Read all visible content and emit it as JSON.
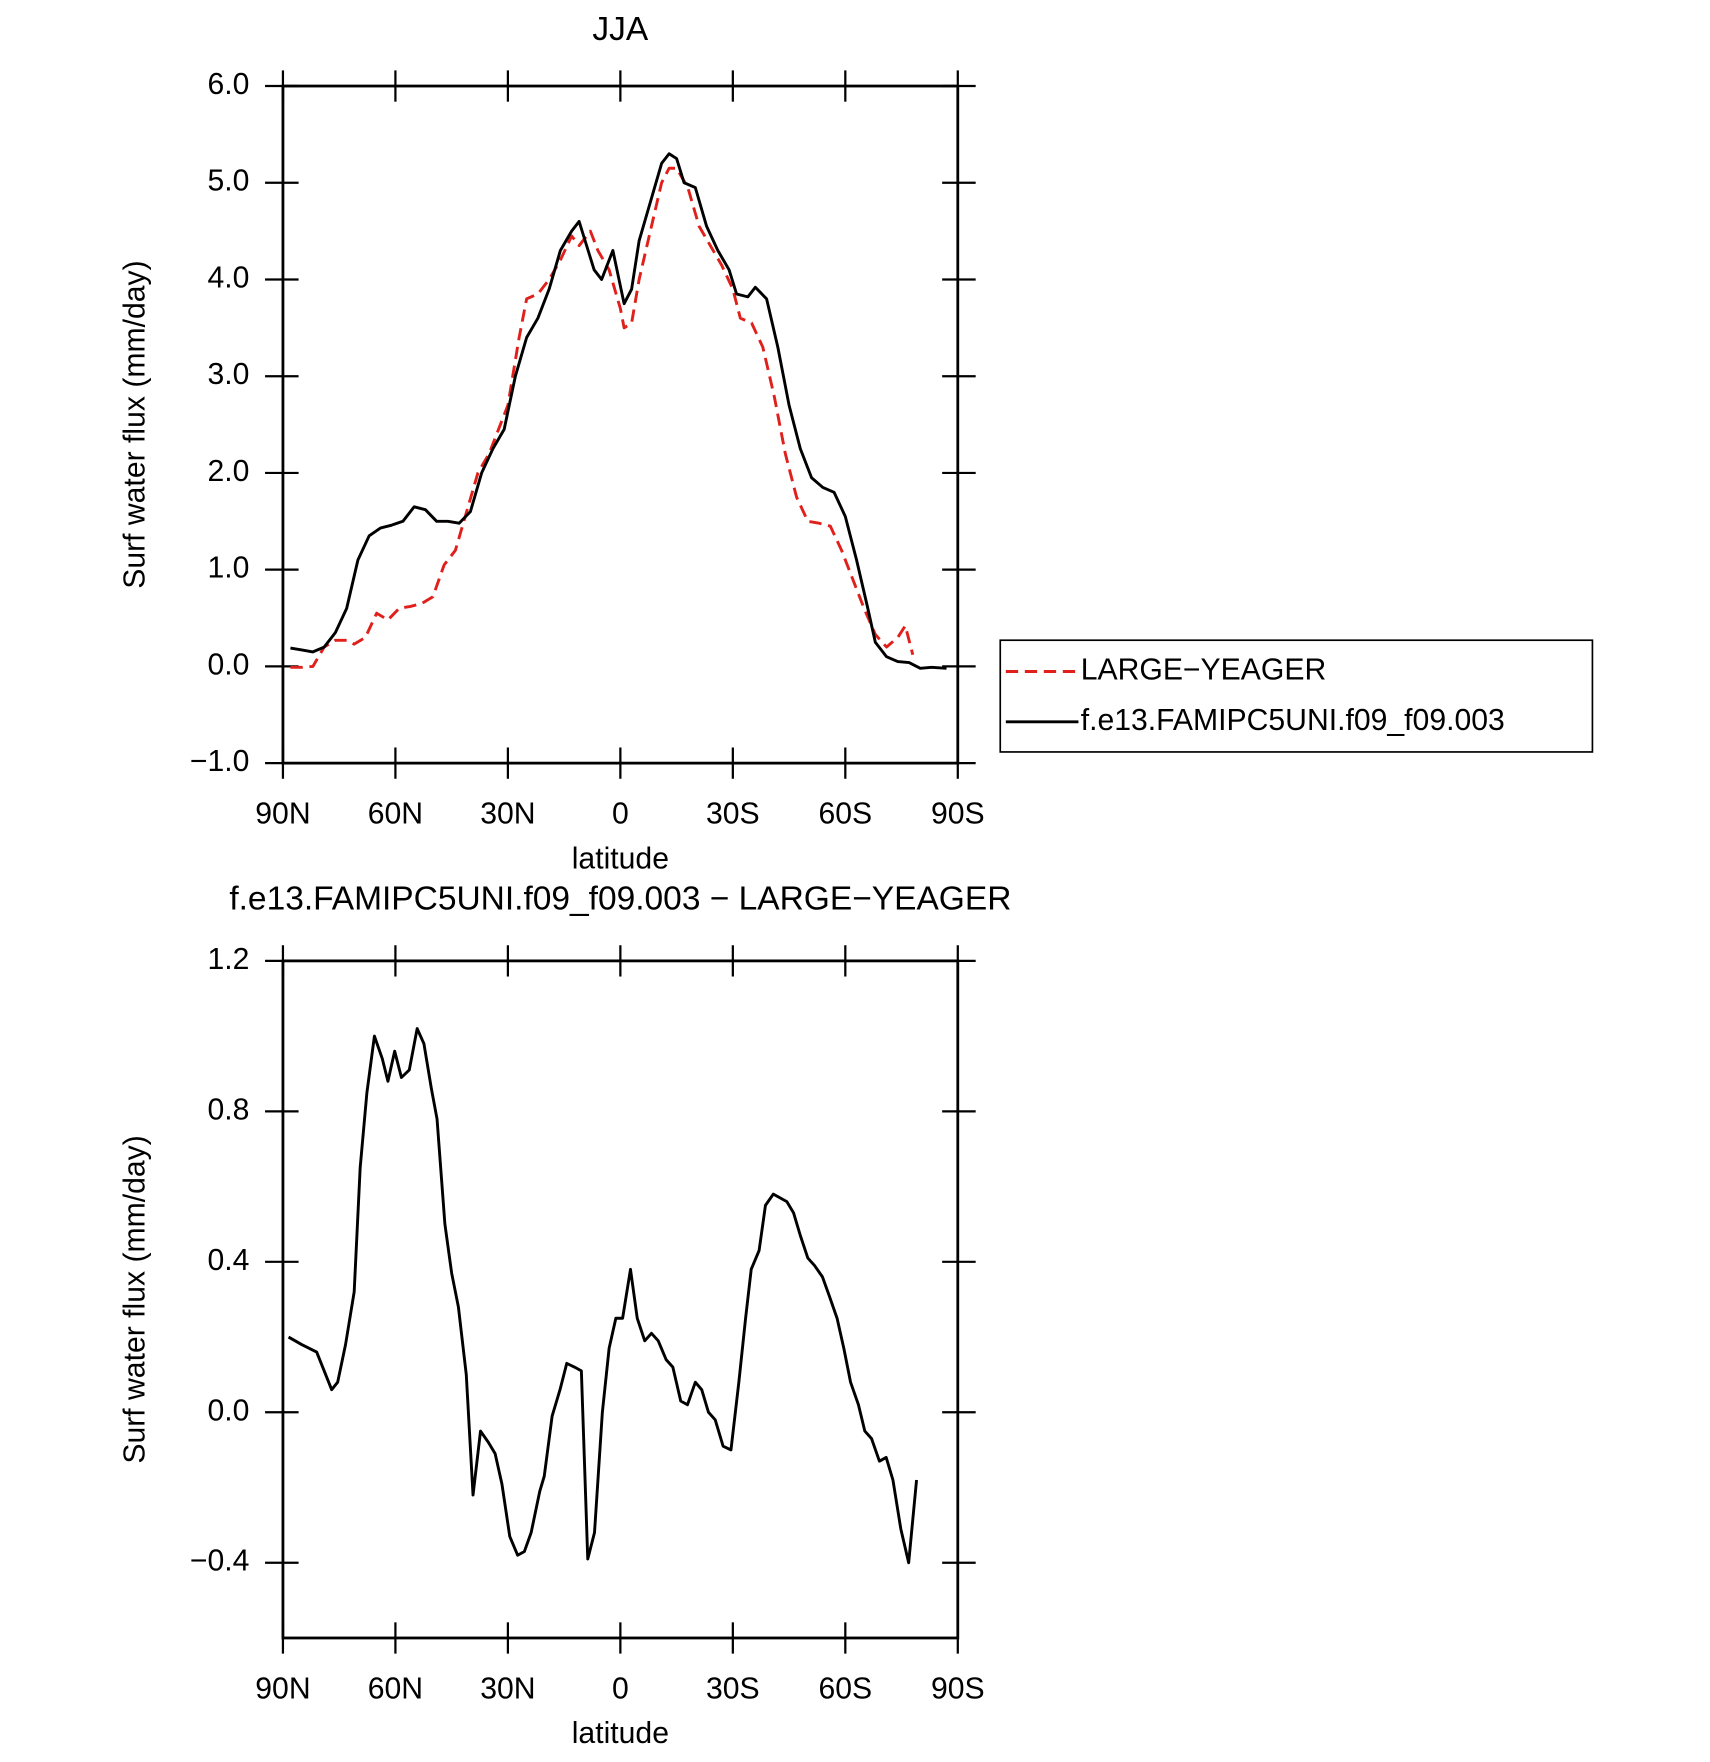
{
  "chart_data": [
    {
      "type": "line",
      "title": "JJA",
      "xlabel": "latitude",
      "ylabel": "Surf water flux (mm/day)",
      "xlim": [
        90,
        -90
      ],
      "xticks": [
        {
          "value": 90,
          "label": "90N"
        },
        {
          "value": 60,
          "label": "60N"
        },
        {
          "value": 30,
          "label": "30N"
        },
        0,
        {
          "value": -30,
          "label": "30S"
        },
        {
          "value": -60,
          "label": "60S"
        },
        {
          "value": -90,
          "label": "90S"
        }
      ],
      "ylim": [
        -1,
        6
      ],
      "yticks": [
        {
          "value": 6,
          "label": "6.0"
        },
        {
          "value": 5,
          "label": "5.0"
        },
        {
          "value": 4,
          "label": "4.0"
        },
        {
          "value": 3,
          "label": "3.0"
        },
        {
          "value": 2,
          "label": "2.0"
        },
        {
          "value": 1,
          "label": "1.0"
        },
        {
          "value": 0,
          "label": "0.0"
        },
        {
          "value": -1,
          "label": "−1.0"
        }
      ],
      "legend_position": "right",
      "series": [
        {
          "name": "LARGE−YEAGER",
          "color": "#e0201b",
          "line_style": "dashed",
          "x": [
            88,
            85,
            82,
            79,
            76,
            73,
            71,
            68,
            65,
            62,
            59,
            56,
            53,
            50,
            47,
            44,
            41,
            38,
            35,
            32,
            30,
            27,
            25,
            22,
            19,
            16,
            13,
            11,
            8,
            6,
            3,
            0,
            -1,
            -3,
            -5,
            -8,
            -11,
            -13,
            -15,
            -18,
            -21,
            -24,
            -27,
            -30,
            -32,
            -35,
            -38,
            -41,
            -44,
            -47,
            -50,
            -53,
            -56,
            -59,
            -62,
            -65,
            -68,
            -71,
            -74,
            -76,
            -78
          ],
          "values": [
            -0.01,
            -0.01,
            0.0,
            0.2,
            0.27,
            0.27,
            0.23,
            0.3,
            0.55,
            0.48,
            0.6,
            0.62,
            0.65,
            0.72,
            1.05,
            1.2,
            1.6,
            2.0,
            2.2,
            2.5,
            2.7,
            3.4,
            3.8,
            3.85,
            4.0,
            4.2,
            4.45,
            4.35,
            4.5,
            4.3,
            4.1,
            3.7,
            3.5,
            3.55,
            4.0,
            4.5,
            5.0,
            5.15,
            5.15,
            4.95,
            4.55,
            4.35,
            4.15,
            3.9,
            3.6,
            3.55,
            3.3,
            2.8,
            2.2,
            1.75,
            1.5,
            1.48,
            1.45,
            1.2,
            0.9,
            0.6,
            0.33,
            0.2,
            0.3,
            0.42,
            0.12
          ]
        },
        {
          "name": "f.e13.FAMIPC5UNI.f09_f09.003",
          "color": "#000000",
          "line_style": "solid",
          "x": [
            88,
            85,
            82,
            79,
            76,
            73,
            70,
            67,
            64,
            61,
            58,
            55,
            52,
            49,
            46,
            43,
            40,
            37,
            34,
            31,
            28,
            25,
            22,
            19,
            16,
            13,
            11,
            9,
            7,
            5,
            2,
            -1,
            -3,
            -5,
            -8,
            -11,
            -13,
            -15,
            -17,
            -20,
            -23,
            -26,
            -29,
            -31,
            -34,
            -36,
            -39,
            -42,
            -45,
            -48,
            -51,
            -54,
            -57,
            -60,
            -63,
            -66,
            -68,
            -71,
            -74,
            -77,
            -80,
            -83,
            -87
          ],
          "values": [
            0.19,
            0.17,
            0.15,
            0.2,
            0.35,
            0.6,
            1.1,
            1.35,
            1.43,
            1.46,
            1.5,
            1.65,
            1.62,
            1.5,
            1.5,
            1.48,
            1.6,
            2.0,
            2.25,
            2.45,
            3.0,
            3.4,
            3.6,
            3.9,
            4.3,
            4.5,
            4.6,
            4.35,
            4.1,
            4.0,
            4.3,
            3.75,
            3.9,
            4.4,
            4.8,
            5.2,
            5.3,
            5.25,
            5.0,
            4.95,
            4.55,
            4.3,
            4.1,
            3.85,
            3.82,
            3.92,
            3.8,
            3.3,
            2.7,
            2.25,
            1.95,
            1.85,
            1.8,
            1.55,
            1.1,
            0.6,
            0.25,
            0.1,
            0.05,
            0.04,
            -0.02,
            -0.01,
            -0.02
          ]
        }
      ]
    },
    {
      "type": "line",
      "title": "f.e13.FAMIPC5UNI.f09_f09.003 − LARGE−YEAGER",
      "xlabel": "latitude",
      "ylabel": "Surf water flux (mm/day)",
      "xlim": [
        90,
        -90
      ],
      "xticks": [
        {
          "value": 90,
          "label": "90N"
        },
        {
          "value": 60,
          "label": "60N"
        },
        {
          "value": 30,
          "label": "30N"
        },
        0,
        {
          "value": -30,
          "label": "30S"
        },
        {
          "value": -60,
          "label": "60S"
        },
        {
          "value": -90,
          "label": "90S"
        }
      ],
      "ylim": [
        -0.6,
        1.2
      ],
      "yticks": [
        1.2,
        0.8,
        0.4,
        {
          "value": 0,
          "label": "0.0"
        },
        {
          "value": -0.4,
          "label": "−0.4"
        }
      ],
      "color": "#000000",
      "x": [
        88.5,
        85,
        81,
        77,
        75.4,
        73.3,
        71,
        69.4,
        67.6,
        65.6,
        63.5,
        62,
        60.2,
        58.4,
        56.3,
        54.2,
        52.4,
        50.4,
        48.9,
        46.8,
        45,
        43.2,
        41.1,
        39.3,
        37.3,
        35.2,
        33.4,
        31.6,
        29.5,
        27.4,
        25.6,
        23.8,
        21.5,
        20.3,
        18.2,
        16.1,
        14.3,
        12.2,
        10.4,
        8.7,
        6.9,
        4.8,
        3,
        1.2,
        -0.6,
        -2.7,
        -4.5,
        -6.5,
        -8.3,
        -10.1,
        -12.2,
        -14,
        -16.1,
        -17.9,
        -20,
        -21.7,
        -23.5,
        -25.3,
        -27.4,
        -29.5,
        -31.6,
        -33.4,
        -34.9,
        -37,
        -38.7,
        -40.8,
        -42.6,
        -44.4,
        -46.2,
        -48,
        -50,
        -51.8,
        -53.9,
        -55.7,
        -57.8,
        -59.6,
        -61.4,
        -63.5,
        -65.2,
        -67,
        -69.1,
        -70.9,
        -72.7,
        -74.8,
        -76.9,
        -79
      ],
      "values": [
        0.2,
        0.18,
        0.16,
        0.06,
        0.08,
        0.18,
        0.32,
        0.65,
        0.85,
        1.0,
        0.94,
        0.88,
        0.96,
        0.89,
        0.91,
        1.02,
        0.98,
        0.86,
        0.78,
        0.5,
        0.37,
        0.28,
        0.1,
        -0.22,
        -0.05,
        -0.08,
        -0.11,
        -0.19,
        -0.33,
        -0.38,
        -0.37,
        -0.32,
        -0.21,
        -0.17,
        -0.01,
        0.06,
        0.13,
        0.12,
        0.11,
        -0.39,
        -0.32,
        0.0,
        0.17,
        0.25,
        0.25,
        0.38,
        0.25,
        0.19,
        0.21,
        0.19,
        0.14,
        0.12,
        0.03,
        0.02,
        0.08,
        0.06,
        0.0,
        -0.02,
        -0.09,
        -0.1,
        0.08,
        0.25,
        0.38,
        0.43,
        0.55,
        0.58,
        0.57,
        0.56,
        0.53,
        0.47,
        0.41,
        0.39,
        0.36,
        0.31,
        0.25,
        0.17,
        0.08,
        0.02,
        -0.05,
        -0.07,
        -0.13,
        -0.12,
        -0.18,
        -0.31,
        -0.4,
        -0.18
      ]
    }
  ]
}
